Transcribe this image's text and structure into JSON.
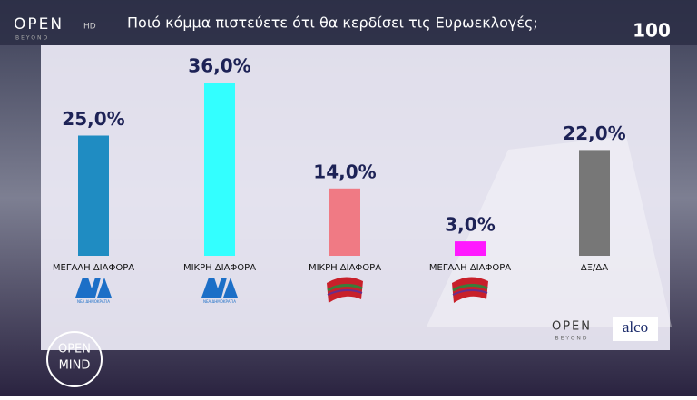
{
  "chart_data": {
    "type": "bar",
    "title": "Ποιό κόμμα πιστεύετε ότι θα κερδίσει τις Ευρωεκλογές;",
    "categories": [
      "ΜΕΓΑΛΗ ΔΙΑΦΟΡΑ",
      "ΜΙΚΡΗ ΔΙΑΦΟΡΑ",
      "ΜΙΚΡΗ ΔΙΑΦΟΡΑ",
      "ΜΕΓΑΛΗ ΔΙΑΦΟΡΑ",
      "ΔΞ/ΔΑ"
    ],
    "values": [
      25,
      36,
      14,
      3,
      22
    ],
    "value_labels": [
      "25,0%",
      "36,0%",
      "14,0%",
      "3,0%",
      "22,0%"
    ],
    "colors": [
      "#1f8cc2",
      "#33ffff",
      "#f07a84",
      "#ff19ff",
      "#777777"
    ]
  },
  "branding": {
    "channel": "OPEN",
    "channel_suffix": "HD",
    "channel_tagline": "BEYOND",
    "anniversary": "100",
    "show_top": "OPEN",
    "show_bottom": "MIND",
    "pollster": "alco",
    "footer_channel": "OPEN",
    "footer_tagline": "BEYOND",
    "party_logo_text": "ΝΕΑ ΔΗΜΟΚΡΑΤΙΑ"
  }
}
